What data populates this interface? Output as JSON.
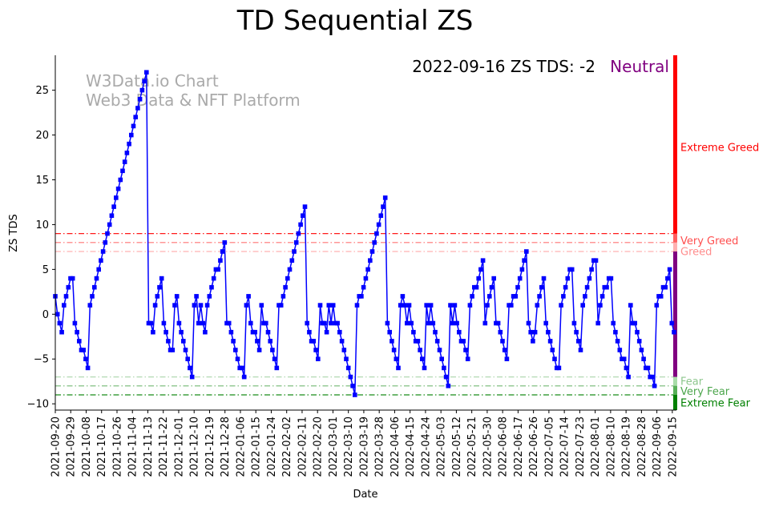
{
  "chart_data": {
    "type": "line",
    "title": "TD Sequential ZS",
    "xlabel": "Date",
    "ylabel": "ZS TDS",
    "ylim": [
      -10.7,
      28.9
    ],
    "yticks": [
      -10,
      -5,
      0,
      5,
      10,
      15,
      20,
      25
    ],
    "xticks": [
      "2021-09-20",
      "2021-09-29",
      "2021-10-08",
      "2021-10-17",
      "2021-10-26",
      "2021-11-04",
      "2021-11-13",
      "2021-11-22",
      "2021-12-01",
      "2021-12-10",
      "2021-12-19",
      "2021-12-28",
      "2022-01-06",
      "2022-01-15",
      "2022-01-24",
      "2022-02-02",
      "2022-02-11",
      "2022-02-20",
      "2022-03-01",
      "2022-03-10",
      "2022-03-19",
      "2022-03-28",
      "2022-04-06",
      "2022-04-15",
      "2022-04-24",
      "2022-05-03",
      "2022-05-12",
      "2022-05-21",
      "2022-05-30",
      "2022-06-08",
      "2022-06-17",
      "2022-06-26",
      "2022-07-05",
      "2022-07-14",
      "2022-07-23",
      "2022-08-01",
      "2022-08-10",
      "2022-08-19",
      "2022-08-28",
      "2022-09-06",
      "2022-09-15"
    ],
    "start_date": "2021-09-20",
    "end_date": "2022-09-16",
    "series": [
      {
        "name": "ZS TDS",
        "color": "#0000ff",
        "values": [
          2,
          0,
          -1,
          -2,
          1,
          2,
          3,
          4,
          4,
          -1,
          -2,
          -3,
          -4,
          -4,
          -5,
          -6,
          1,
          2,
          3,
          4,
          5,
          6,
          7,
          8,
          9,
          10,
          11,
          12,
          13,
          14,
          15,
          16,
          17,
          18,
          19,
          20,
          21,
          22,
          23,
          24,
          25,
          26,
          27,
          -1,
          -1,
          -2,
          1,
          2,
          3,
          4,
          -1,
          -2,
          -3,
          -4,
          -4,
          1,
          2,
          -1,
          -2,
          -3,
          -4,
          -5,
          -6,
          -7,
          1,
          2,
          -1,
          1,
          -1,
          -2,
          1,
          2,
          3,
          4,
          5,
          5,
          6,
          7,
          8,
          -1,
          -1,
          -2,
          -3,
          -4,
          -5,
          -6,
          -6,
          -7,
          1,
          2,
          -1,
          -2,
          -2,
          -3,
          -4,
          1,
          -1,
          -1,
          -2,
          -3,
          -4,
          -5,
          -6,
          1,
          1,
          2,
          3,
          4,
          5,
          6,
          7,
          8,
          9,
          10,
          11,
          12,
          -1,
          -2,
          -3,
          -3,
          -4,
          -5,
          1,
          -1,
          -1,
          -2,
          1,
          -1,
          1,
          -1,
          -1,
          -2,
          -3,
          -4,
          -5,
          -6,
          -7,
          -8,
          -9,
          1,
          2,
          2,
          3,
          4,
          5,
          6,
          7,
          8,
          9,
          10,
          11,
          12,
          13,
          -1,
          -2,
          -3,
          -4,
          -5,
          -6,
          1,
          2,
          1,
          -1,
          1,
          -1,
          -2,
          -3,
          -3,
          -4,
          -5,
          -6,
          1,
          -1,
          1,
          -1,
          -2,
          -3,
          -4,
          -5,
          -6,
          -7,
          -8,
          1,
          -1,
          1,
          -1,
          -2,
          -3,
          -3,
          -4,
          -5,
          1,
          2,
          3,
          3,
          4,
          5,
          6,
          -1,
          1,
          2,
          3,
          4,
          -1,
          -1,
          -2,
          -3,
          -4,
          -5,
          1,
          1,
          2,
          2,
          3,
          4,
          5,
          6,
          7,
          -1,
          -2,
          -3,
          -2,
          1,
          2,
          3,
          4,
          -1,
          -2,
          -3,
          -4,
          -5,
          -6,
          -6,
          1,
          2,
          3,
          4,
          5,
          5,
          -1,
          -2,
          -3,
          -4,
          1,
          2,
          3,
          4,
          5,
          6,
          6,
          -1,
          1,
          2,
          3,
          3,
          4,
          4,
          -1,
          -2,
          -3,
          -4,
          -5,
          -5,
          -6,
          -7,
          1,
          -1,
          -1,
          -2,
          -3,
          -4,
          -5,
          -6,
          -6,
          -7,
          -7,
          -8,
          1,
          2,
          2,
          3,
          3,
          4,
          5,
          -1,
          -2
        ]
      }
    ],
    "levels": [
      {
        "label": "Extreme Greed",
        "value": 9,
        "color": "#ff0000",
        "alpha": 0.9
      },
      {
        "label": "Very Greed",
        "value": 8,
        "color": "#ff0000",
        "alpha": 0.55
      },
      {
        "label": "Greed",
        "value": 7,
        "color": "#ff0000",
        "alpha": 0.3
      },
      {
        "label": "Fear",
        "value": -7,
        "color": "#008000",
        "alpha": 0.3
      },
      {
        "label": "Very Fear",
        "value": -8,
        "color": "#008000",
        "alpha": 0.55
      },
      {
        "label": "Extreme Fear",
        "value": -9,
        "color": "#008000",
        "alpha": 0.9
      }
    ],
    "zone_bar": [
      {
        "from": 9,
        "to": 28.9,
        "color": "#ff0000"
      },
      {
        "from": 8,
        "to": 9,
        "color": "#ff6060"
      },
      {
        "from": 7,
        "to": 8,
        "color": "#ffb0b0"
      },
      {
        "from": -7,
        "to": 7,
        "color": "#800080"
      },
      {
        "from": -8,
        "to": -7,
        "color": "#a8dca8"
      },
      {
        "from": -9,
        "to": -8,
        "color": "#58b058"
      },
      {
        "from": -10.7,
        "to": -9,
        "color": "#008000"
      }
    ],
    "annotation": {
      "text": "2022-09-16 ZS TDS: -2",
      "status": "Neutral",
      "status_color": "#800080"
    },
    "watermark": [
      "W3Data.io Chart",
      "Web3 Data & NFT Platform"
    ]
  }
}
